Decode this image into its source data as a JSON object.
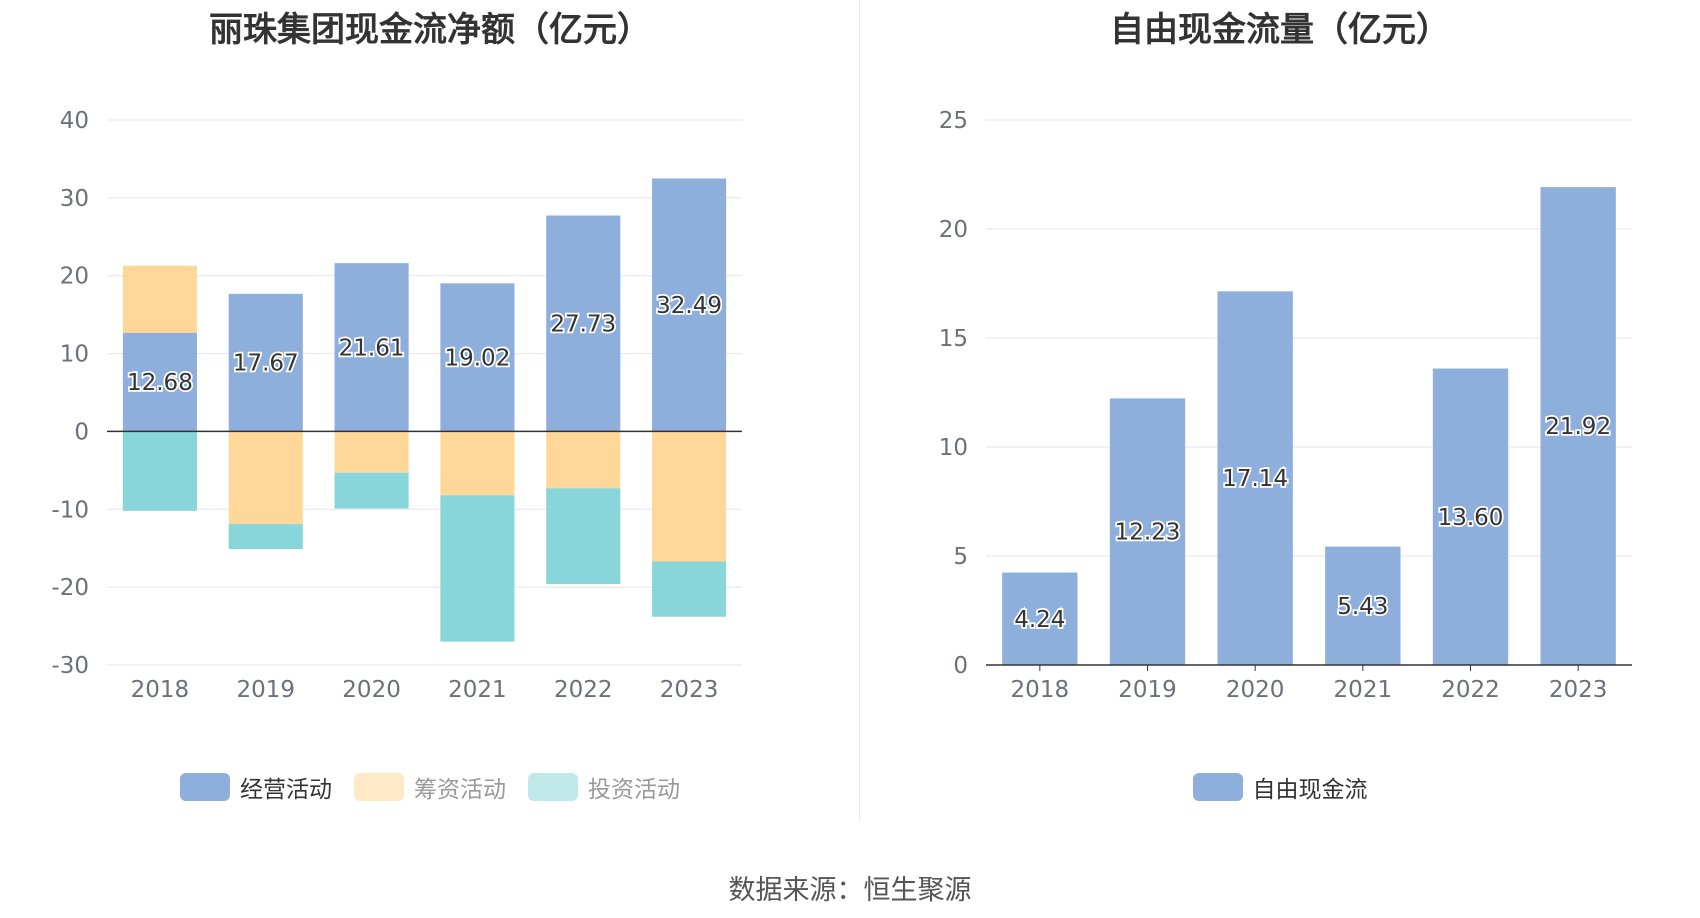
{
  "colors": {
    "operating": "#8eaedb",
    "financing": "#ffd899",
    "investing": "#88d6d9",
    "free_cash": "#8eaedb",
    "grid": "#e0e6f1",
    "axis": "#333333"
  },
  "source": "数据来源：恒生聚源",
  "chart_data": [
    {
      "type": "bar",
      "stacked": true,
      "title": "丽珠集团现金流净额（亿元）",
      "categories": [
        "2018",
        "2019",
        "2020",
        "2021",
        "2022",
        "2023"
      ],
      "ylim": [
        -30,
        40
      ],
      "yticks": [
        40,
        30,
        20,
        10,
        0,
        -10,
        -20,
        -30
      ],
      "grid": true,
      "legend_position": "bottom",
      "series": [
        {
          "name": "经营活动",
          "key": "operating",
          "values": [
            12.68,
            17.67,
            21.61,
            19.02,
            27.73,
            32.49
          ],
          "labels": [
            "12.68",
            "17.67",
            "21.61",
            "19.02",
            "27.73",
            "32.49"
          ]
        },
        {
          "name": "筹资活动",
          "key": "financing",
          "values": [
            8.6,
            -11.9,
            -5.3,
            -8.2,
            -7.3,
            -16.7
          ]
        },
        {
          "name": "投资活动",
          "key": "investing",
          "values": [
            -10.2,
            -3.2,
            -4.6,
            -18.8,
            -12.3,
            -7.1
          ]
        }
      ]
    },
    {
      "type": "bar",
      "title": "自由现金流量（亿元）",
      "categories": [
        "2018",
        "2019",
        "2020",
        "2021",
        "2022",
        "2023"
      ],
      "ylim": [
        0,
        25
      ],
      "yticks": [
        25,
        20,
        15,
        10,
        5,
        0
      ],
      "grid": true,
      "legend_position": "bottom",
      "series": [
        {
          "name": "自由现金流",
          "key": "free_cash",
          "values": [
            4.24,
            12.23,
            17.14,
            5.43,
            13.6,
            21.92
          ],
          "labels": [
            "4.24",
            "12.23",
            "17.14",
            "5.43",
            "13.60",
            "21.92"
          ]
        }
      ]
    }
  ]
}
